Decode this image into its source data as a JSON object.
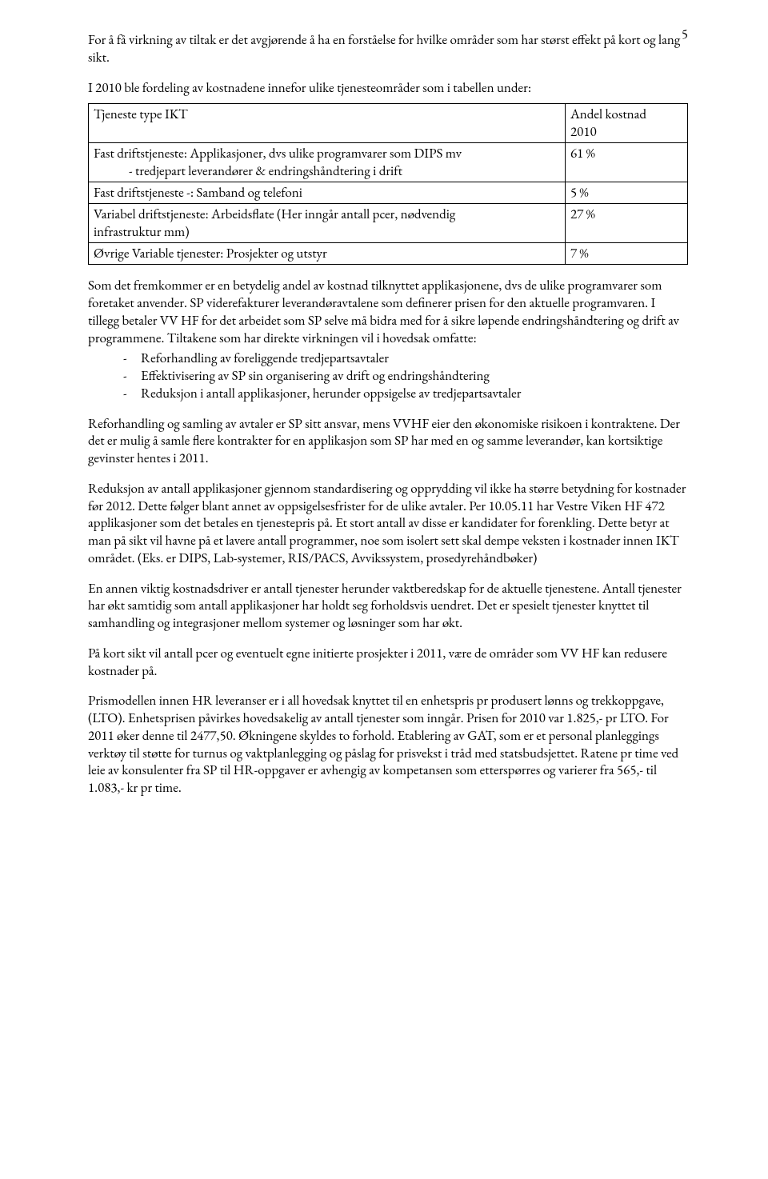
{
  "page_number": "5",
  "p_intro": "For å få virkning av tiltak er det avgjørende å ha en forståelse for hvilke områder som har størst effekt på kort og lang sikt.",
  "p_intro2": "I 2010 ble fordeling av kostnadene innefor ulike tjenesteområder som i tabellen under:",
  "table": {
    "header_left": "Tjeneste type IKT",
    "header_right_line1": "Andel kostnad",
    "header_right_line2": "2010",
    "row1_col1_line1": "Fast driftstjeneste: Applikasjoner, dvs ulike programvarer som DIPS mv",
    "row1_col1_line2": "-    tredjepart leverandører & endringshåndtering i drift",
    "row1_col2": "61 %",
    "row2_col1": "Fast driftstjeneste -: Samband og telefoni",
    "row2_col2": "5 %",
    "row3_col1_line1": "Variabel driftstjeneste: Arbeidsflate (Her inngår antall pcer, nødvendig",
    "row3_col1_line2": "infrastruktur mm)",
    "row3_col2": "27 %",
    "row4_col1": "Øvrige Variable tjenester: Prosjekter og utstyr",
    "row4_col2": "7 %"
  },
  "p_after_table": "Som det fremkommer er en betydelig andel av kostnad tilknyttet applikasjonene, dvs de ulike programvarer som foretaket anvender. SP viderefakturer leverandøravtalene som definerer prisen for den aktuelle programvaren. I tillegg betaler VV HF for det arbeidet som SP selve må bidra med for å sikre løpende endringshåndtering og drift av programmene. Tiltakene som har direkte virkningen vil i hovedsak omfatte:",
  "bullets": {
    "b1": "Reforhandling av foreliggende tredjepartsavtaler",
    "b2": "Effektivisering av SP sin organisering av drift og endringshåndtering",
    "b3": "Reduksjon i antall applikasjoner, herunder oppsigelse av tredjepartsavtaler"
  },
  "p3": "Reforhandling og samling av avtaler er SP sitt ansvar, mens VVHF eier den økonomiske risikoen i kontraktene. Der det er mulig å samle flere kontrakter for en applikasjon som SP har med en og samme leverandør, kan kortsiktige gevinster hentes i 2011.",
  "p4": "Reduksjon av antall applikasjoner gjennom standardisering og opprydding vil ikke ha større betydning for kostnader før 2012. Dette følger blant annet av oppsigelsesfrister for de ulike avtaler. Per 10.05.11 har Vestre Viken HF 472 applikasjoner som det betales en tjenestepris på. Et stort antall av disse er kandidater for forenkling. Dette betyr at man på sikt vil havne på et lavere antall programmer, noe som isolert sett skal dempe veksten i kostnader innen IKT området. (Eks. er DIPS, Lab-systemer, RIS/PACS, Avvikssystem, prosedyrehåndbøker)",
  "p5": "En annen viktig kostnadsdriver er antall tjenester herunder vaktberedskap for de aktuelle tjenestene.  Antall tjenester har økt samtidig som antall applikasjoner har holdt seg forholdsvis uendret. Det er spesielt tjenester knyttet til samhandling og integrasjoner mellom systemer og løsninger som har økt.",
  "p6": "På kort sikt vil antall pcer og eventuelt egne initierte prosjekter i 2011, være de områder som VV HF kan redusere kostnader på.",
  "p7": "Prismodellen innen HR leveranser er i all hovedsak knyttet til en enhetspris pr produsert lønns og trekkoppgave, (LTO). Enhetsprisen påvirkes hovedsakelig av antall tjenester som inngår. Prisen for 2010 var 1.825,- pr LTO. For 2011 øker denne til 2477,50. Økningene skyldes to forhold. Etablering av GAT, som er et personal planleggings verktøy til støtte for turnus og vaktplanlegging og påslag for prisvekst i tråd med statsbudsjettet. Ratene pr time ved leie av konsulenter fra SP til HR-oppgaver er avhengig av kompetansen som etterspørres og varierer fra 565,- til 1.083,- kr pr time."
}
